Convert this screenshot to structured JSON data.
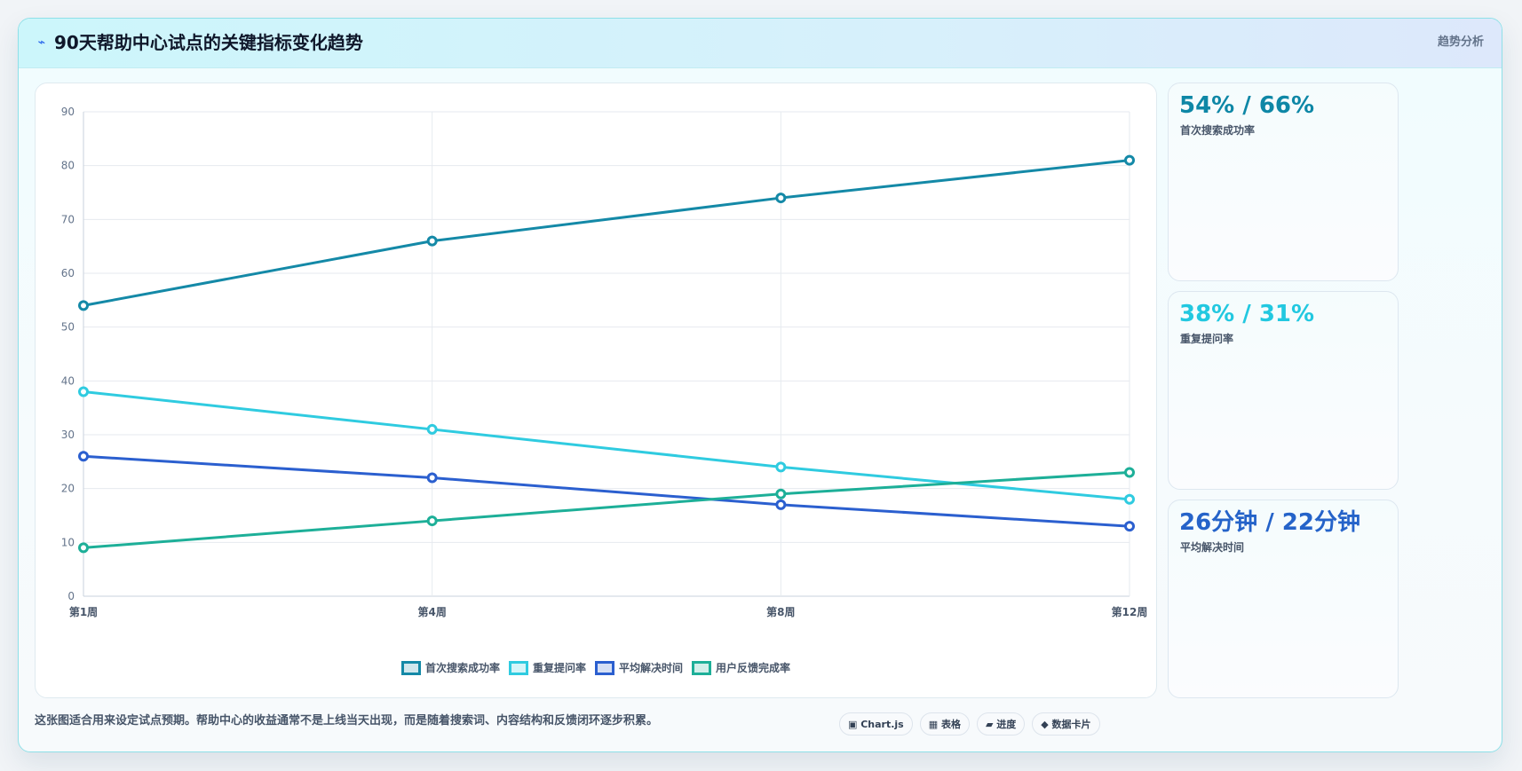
{
  "header": {
    "icon": "⌁",
    "icon_name": "trend-icon",
    "title": "90天帮助中心试点的关键指标变化趋势",
    "tag": "趋势分析"
  },
  "chart_data": {
    "type": "line",
    "categories": [
      "第1周",
      "第4周",
      "第8周",
      "第12周"
    ],
    "ylim": [
      0,
      90
    ],
    "yticks": [
      0,
      10,
      20,
      30,
      40,
      50,
      60,
      70,
      80,
      90
    ],
    "grid": true,
    "legend_position": "bottom",
    "title": "",
    "xlabel": "",
    "ylabel": "",
    "series": [
      {
        "name": "首次搜索成功率",
        "color": "#1489a7",
        "values": [
          54,
          66,
          74,
          81
        ]
      },
      {
        "name": "重复提问率",
        "color": "#2fcbe0",
        "values": [
          38,
          31,
          24,
          18
        ]
      },
      {
        "name": "平均解决时间",
        "color": "#2b5fcf",
        "values": [
          26,
          22,
          17,
          13
        ]
      },
      {
        "name": "用户反馈完成率",
        "color": "#1daf98",
        "values": [
          9,
          14,
          19,
          23
        ]
      }
    ]
  },
  "kpis": [
    {
      "value": "54% / 66%",
      "label": "首次搜索成功率",
      "color": "#0e87a6"
    },
    {
      "value": "38% / 31%",
      "label": "重复提问率",
      "color": "#22c8e0"
    },
    {
      "value": "26分钟 / 22分钟",
      "label": "平均解决时间",
      "color": "#2563c9"
    }
  ],
  "footer": {
    "note": "这张图适合用来设定试点预期。帮助中心的收益通常不是上线当天出现，而是随着搜索词、内容结构和反馈闭环逐步积累。",
    "chips": [
      "▣ Chart.js",
      "▦ 表格",
      "▰ 进度",
      "◆ 数据卡片"
    ]
  }
}
